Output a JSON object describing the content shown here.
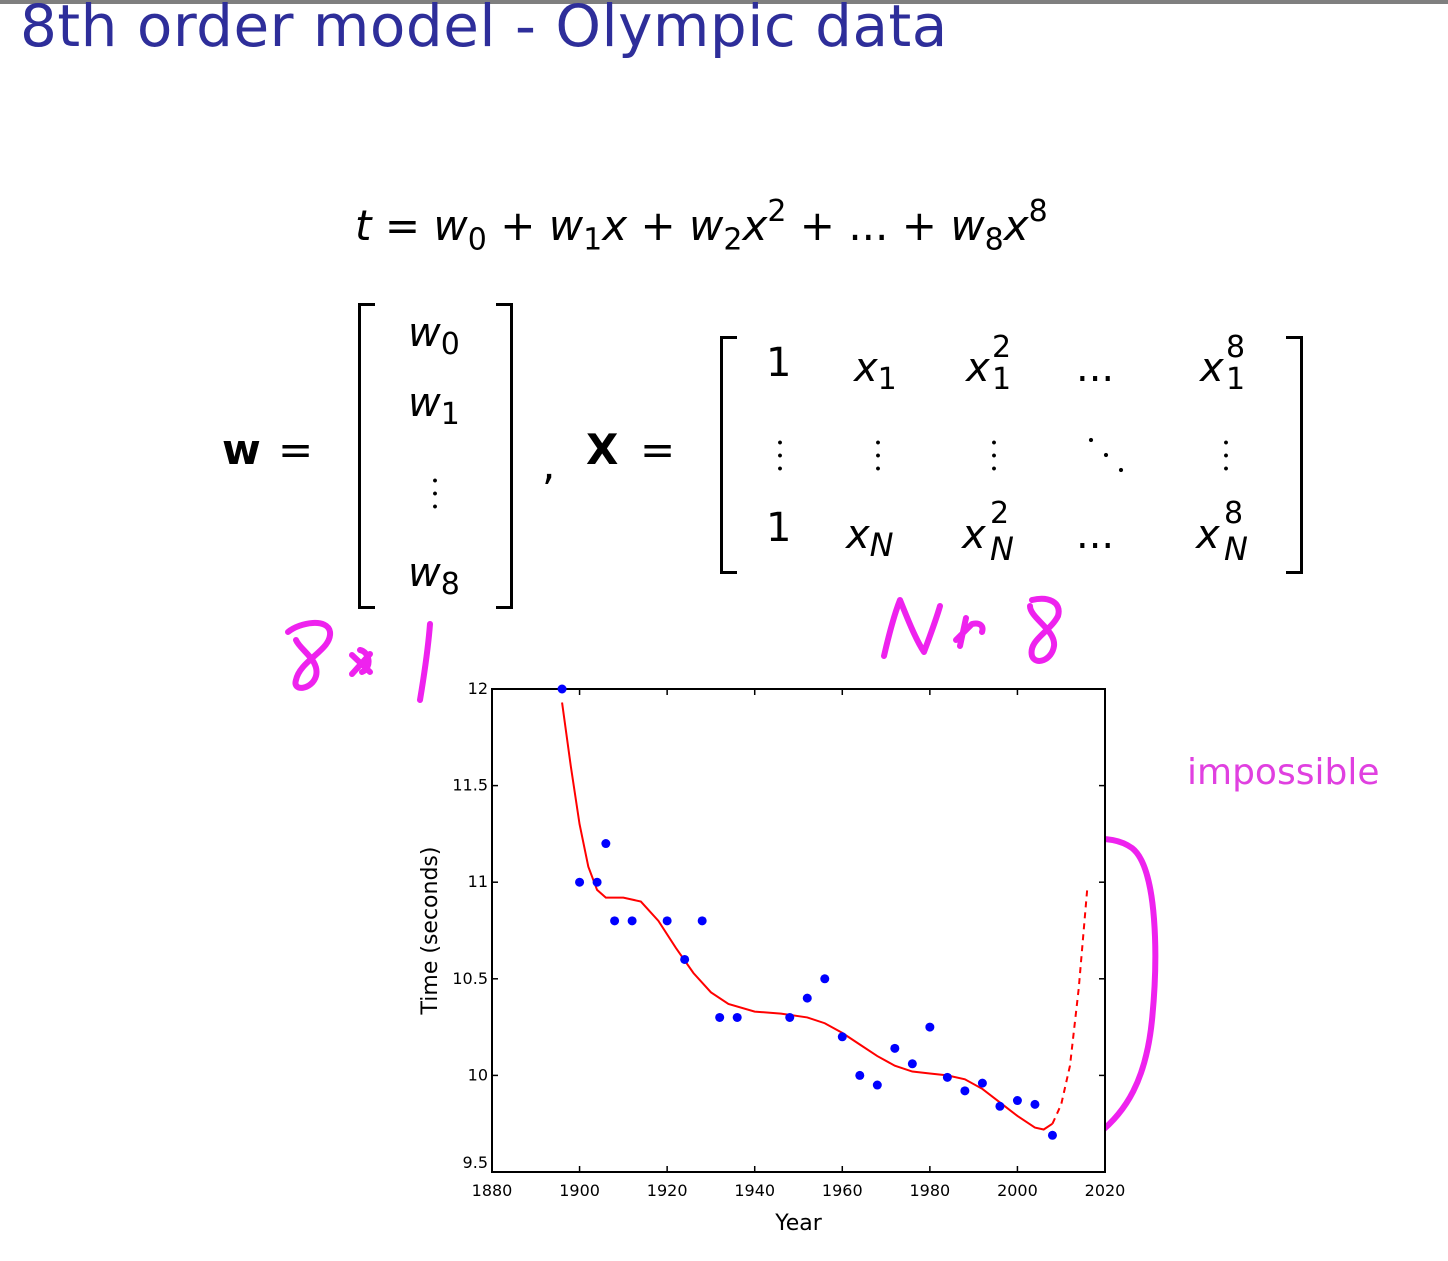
{
  "slide": {
    "title": "8th order model - Olympic data"
  },
  "equation": {
    "lhs": "t",
    "eq": "=",
    "plus": "+",
    "dots": "...",
    "w0": "w",
    "s0": "0",
    "w1": "w",
    "s1": "1",
    "x1": "x",
    "w2": "w",
    "s2": "2",
    "x2": "x",
    "p2": "2",
    "w8": "w",
    "s8": "8",
    "x8": "x",
    "p8": "8"
  },
  "vector_w": {
    "name": "w",
    "eq": "=",
    "comma": ",",
    "entries": [
      {
        "base": "w",
        "sub": "0"
      },
      {
        "base": "w",
        "sub": "1"
      },
      {
        "base": "w",
        "sub": "8"
      }
    ]
  },
  "matrix_X": {
    "name": "X",
    "eq": "=",
    "row1": {
      "one": "1",
      "x": "x",
      "xsub": "1",
      "x2sup": "2",
      "x2sub": "1",
      "dots": "...",
      "x8sup": "8",
      "x8sub": "1"
    },
    "rowN": {
      "one": "1",
      "x": "x",
      "xsub": "N",
      "x2sup": "2",
      "x2sub": "N",
      "dots": "...",
      "x8sup": "8",
      "x8sub": "N"
    }
  },
  "handwritten": {
    "left": "8x1",
    "right": "N x8"
  },
  "annotation": {
    "text": "impossible",
    "color": "#e040e0"
  },
  "chart_data": {
    "type": "scatter",
    "xlabel": "Year",
    "ylabel": "Time (seconds)",
    "xlim": [
      1880,
      2020
    ],
    "ylim": [
      9.5,
      12
    ],
    "xticks": [
      1880,
      1900,
      1920,
      1940,
      1960,
      1980,
      2000,
      2020
    ],
    "yticks": [
      9.5,
      10,
      10.5,
      11,
      11.5,
      12
    ],
    "ytick_labels": [
      "9.5",
      "10",
      "10.5",
      "11",
      "11.5",
      "12"
    ],
    "points": {
      "color": "#0000ff",
      "x": [
        1896,
        1900,
        1904,
        1906,
        1908,
        1912,
        1920,
        1924,
        1928,
        1932,
        1936,
        1948,
        1952,
        1956,
        1960,
        1964,
        1968,
        1972,
        1976,
        1980,
        1984,
        1988,
        1992,
        1996,
        2000,
        2004,
        2008
      ],
      "y": [
        12.0,
        11.0,
        11.0,
        11.2,
        10.8,
        10.8,
        10.8,
        10.6,
        10.8,
        10.3,
        10.3,
        10.3,
        10.4,
        10.5,
        10.2,
        10.0,
        9.95,
        10.14,
        10.06,
        10.25,
        9.99,
        9.92,
        9.96,
        9.84,
        9.87,
        9.85,
        9.69
      ]
    },
    "fit": {
      "color": "#ff0000",
      "x": [
        1896,
        1898,
        1900,
        1902,
        1904,
        1906,
        1910,
        1914,
        1918,
        1922,
        1926,
        1930,
        1934,
        1940,
        1946,
        1952,
        1956,
        1960,
        1964,
        1968,
        1972,
        1976,
        1980,
        1984,
        1988,
        1992,
        1996,
        2000,
        2004,
        2006,
        2008
      ],
      "y": [
        11.93,
        11.6,
        11.3,
        11.08,
        10.96,
        10.92,
        10.92,
        10.9,
        10.8,
        10.66,
        10.53,
        10.43,
        10.37,
        10.33,
        10.32,
        10.3,
        10.27,
        10.22,
        10.16,
        10.1,
        10.05,
        10.02,
        10.01,
        10.0,
        9.98,
        9.93,
        9.86,
        9.79,
        9.73,
        9.72,
        9.75
      ]
    },
    "extrapolation": {
      "color": "#ff0000",
      "style": "dashed",
      "x": [
        2008,
        2010,
        2012,
        2014,
        2016
      ],
      "y": [
        9.75,
        9.85,
        10.05,
        10.45,
        10.98
      ]
    }
  }
}
